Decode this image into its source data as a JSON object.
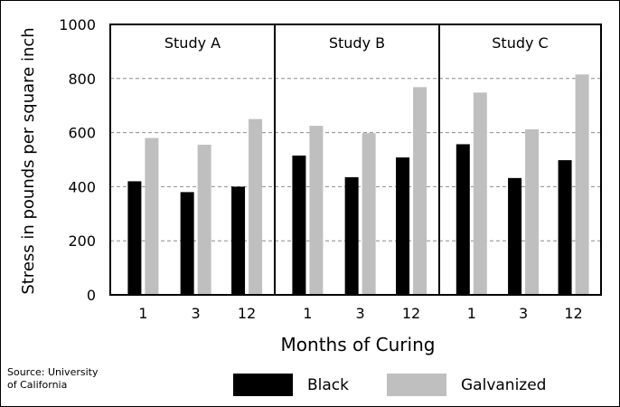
{
  "chart_data": {
    "type": "bar",
    "ylabel": "Stress in pounds per square inch",
    "xlabel": "Months of Curing",
    "ylim": [
      0,
      1000
    ],
    "yticks": [
      0,
      200,
      400,
      600,
      800,
      1000
    ],
    "grid": "horizontal dashed",
    "panels": [
      {
        "title": "Study A",
        "categories": [
          "1",
          "3",
          "12"
        ],
        "series": [
          {
            "name": "Black",
            "values": [
              420,
              380,
              400
            ]
          },
          {
            "name": "Galvanized",
            "values": [
              580,
              555,
              650
            ]
          }
        ]
      },
      {
        "title": "Study B",
        "categories": [
          "1",
          "3",
          "12"
        ],
        "series": [
          {
            "name": "Black",
            "values": [
              515,
              435,
              508
            ]
          },
          {
            "name": "Galvanized",
            "values": [
              625,
              598,
              768
            ]
          }
        ]
      },
      {
        "title": "Study C",
        "categories": [
          "1",
          "3",
          "12"
        ],
        "series": [
          {
            "name": "Black",
            "values": [
              557,
              432,
              498
            ]
          },
          {
            "name": "Galvanized",
            "values": [
              748,
              612,
              815
            ]
          }
        ]
      }
    ],
    "legend": {
      "position": "bottom",
      "items": [
        {
          "name": "Black",
          "color": "#000000"
        },
        {
          "name": "Galvanized",
          "color": "#bfbfbf"
        }
      ]
    },
    "source_note": [
      "Source: University",
      "of California"
    ]
  }
}
